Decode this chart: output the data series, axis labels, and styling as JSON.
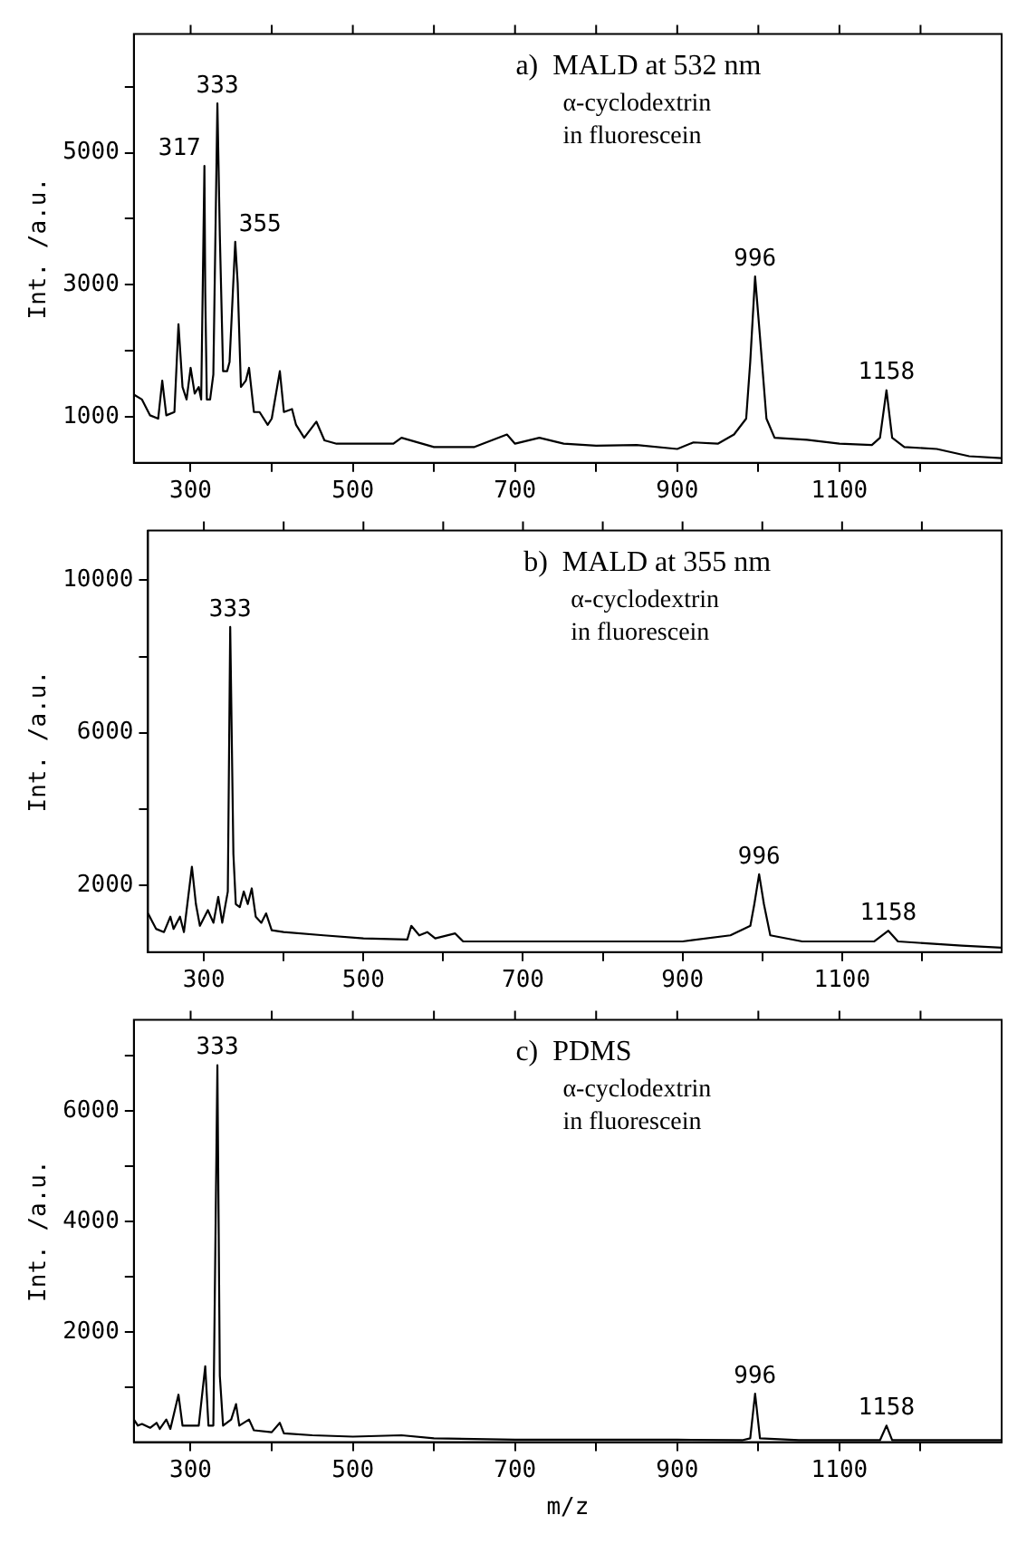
{
  "chart_data": [
    {
      "type": "line",
      "ylabel": "Int. /a.u.",
      "xlim": [
        230,
        1300
      ],
      "ylim": [
        300,
        6800
      ],
      "xticks": [
        300,
        {
          "value": 400,
          "label": null
        },
        500,
        {
          "value": 600,
          "label": null
        },
        700,
        {
          "value": 800,
          "label": null
        },
        900,
        {
          "value": 1000,
          "label": null
        },
        1100,
        {
          "value": 1200,
          "label": null
        }
      ],
      "yticks": [
        1000,
        {
          "value": 2000,
          "label": null
        },
        3000,
        {
          "value": 4000,
          "label": null
        },
        5000,
        {
          "value": 6000,
          "label": null
        }
      ],
      "x": [
        230,
        240,
        250,
        260,
        265,
        270,
        280,
        285,
        290,
        295,
        300,
        305,
        310,
        313,
        317,
        318,
        320,
        324,
        328,
        333,
        336,
        340,
        345,
        348,
        355,
        358,
        362,
        368,
        372,
        378,
        385,
        395,
        400,
        410,
        415,
        425,
        430,
        440,
        455,
        465,
        480,
        500,
        550,
        560,
        600,
        650,
        690,
        700,
        730,
        760,
        800,
        850,
        900,
        920,
        950,
        970,
        985,
        990,
        996,
        1002,
        1010,
        1020,
        1060,
        1100,
        1140,
        1150,
        1158,
        1165,
        1180,
        1220,
        1260,
        1300
      ],
      "series": [
        {
          "color": "#000000",
          "values": [
            1335,
            1260,
            1020,
            970,
            1545,
            1020,
            1070,
            2400,
            1450,
            1260,
            1740,
            1350,
            1450,
            1260,
            4800,
            2900,
            1260,
            1260,
            1640,
            5750,
            3750,
            1690,
            1690,
            1830,
            3650,
            3030,
            1450,
            1545,
            1740,
            1070,
            1070,
            875,
            970,
            1690,
            1070,
            1115,
            875,
            680,
            925,
            640,
            590,
            590,
            590,
            680,
            540,
            540,
            730,
            590,
            680,
            590,
            560,
            570,
            510,
            610,
            590,
            730,
            970,
            1830,
            3125,
            2215,
            970,
            680,
            650,
            590,
            570,
            680,
            1400,
            680,
            540,
            510,
            400,
            370
          ]
        }
      ],
      "annotations": [
        "a)  MALD at 532 nm",
        "α-cyclodextrin",
        "in fluorescein",
        {
          "text": "317",
          "x": 317,
          "y": 4800
        },
        {
          "text": "333",
          "x": 333,
          "y": 5750
        },
        {
          "text": "355",
          "x": 355,
          "y": 3650
        },
        {
          "text": "996",
          "x": 996,
          "y": 3125
        },
        {
          "text": "1158",
          "x": 1158,
          "y": 1400
        }
      ]
    },
    {
      "type": "line",
      "ylabel": "Int. /a.u.",
      "xlim": [
        230,
        1300
      ],
      "ylim": [
        250,
        11300
      ],
      "xticks": [
        300,
        {
          "value": 400,
          "label": null
        },
        500,
        {
          "value": 600,
          "label": null
        },
        700,
        {
          "value": 800,
          "label": null
        },
        900,
        {
          "value": 1000,
          "label": null
        },
        1100,
        {
          "value": 1200,
          "label": null
        }
      ],
      "yticks": [
        2000,
        {
          "value": 4000,
          "label": null
        },
        6000,
        {
          "value": 8000,
          "label": null
        },
        10000
      ],
      "x": [
        230,
        240,
        250,
        258,
        262,
        270,
        275,
        285,
        290,
        295,
        305,
        312,
        318,
        323,
        330,
        333,
        337,
        340,
        345,
        350,
        355,
        360,
        365,
        372,
        378,
        385,
        400,
        450,
        500,
        555,
        560,
        570,
        580,
        590,
        615,
        625,
        650,
        700,
        800,
        900,
        960,
        985,
        990,
        996,
        1002,
        1010,
        1050,
        1140,
        1158,
        1170,
        1250,
        1300
      ],
      "series": [
        {
          "color": "#000000",
          "values": [
            1265,
            860,
            775,
            1180,
            860,
            1180,
            775,
            2490,
            1510,
            940,
            1350,
            1020,
            1700,
            1020,
            1840,
            8775,
            2815,
            1510,
            1430,
            1840,
            1510,
            1920,
            1180,
            1020,
            1265,
            825,
            775,
            690,
            610,
            580,
            940,
            690,
            775,
            610,
            740,
            530,
            530,
            530,
            530,
            530,
            690,
            940,
            1510,
            2290,
            1510,
            690,
            530,
            530,
            810,
            530,
            420,
            365
          ]
        }
      ],
      "annotations": [
        "b)  MALD at 355 nm",
        "α-cyclodextrin",
        "in fluorescein",
        {
          "text": "333",
          "x": 333,
          "y": 8775
        },
        {
          "text": "996",
          "x": 996,
          "y": 2290
        },
        {
          "text": "1158",
          "x": 1158,
          "y": 810
        }
      ]
    },
    {
      "type": "line",
      "ylabel": "Int. /a.u.",
      "xlabel": "m/z",
      "xlim": [
        230,
        1300
      ],
      "ylim": [
        0,
        7650
      ],
      "xticks": [
        300,
        {
          "value": 400,
          "label": null
        },
        500,
        {
          "value": 600,
          "label": null
        },
        700,
        {
          "value": 800,
          "label": null
        },
        900,
        {
          "value": 1000,
          "label": null
        },
        1100,
        {
          "value": 1200,
          "label": null
        }
      ],
      "yticks": [
        {
          "value": 1000,
          "label": null
        },
        2000,
        {
          "value": 3000,
          "label": null
        },
        4000,
        {
          "value": 5000,
          "label": null
        },
        6000,
        {
          "value": 7000,
          "label": null
        }
      ],
      "x": [
        230,
        235,
        240,
        250,
        258,
        262,
        270,
        275,
        285,
        290,
        300,
        310,
        318,
        322,
        328,
        333,
        336,
        340,
        350,
        356,
        360,
        372,
        378,
        400,
        410,
        415,
        450,
        500,
        560,
        600,
        700,
        800,
        900,
        980,
        990,
        996,
        1002,
        1050,
        1150,
        1158,
        1165,
        1300
      ],
      "series": [
        {
          "color": "#000000",
          "values": [
            410,
            300,
            330,
            260,
            350,
            240,
            410,
            240,
            860,
            300,
            300,
            300,
            1375,
            300,
            300,
            6830,
            1200,
            300,
            410,
            690,
            300,
            410,
            215,
            180,
            350,
            160,
            125,
            100,
            125,
            70,
            45,
            45,
            45,
            35,
            70,
            880,
            70,
            35,
            35,
            300,
            35,
            35
          ]
        }
      ],
      "annotations": [
        "c)  PDMS",
        "α-cyclodextrin",
        "in fluorescein",
        {
          "text": "333",
          "x": 333,
          "y": 6830
        },
        {
          "text": "996",
          "x": 996,
          "y": 880
        },
        {
          "text": "1158",
          "x": 1158,
          "y": 300
        }
      ]
    }
  ]
}
